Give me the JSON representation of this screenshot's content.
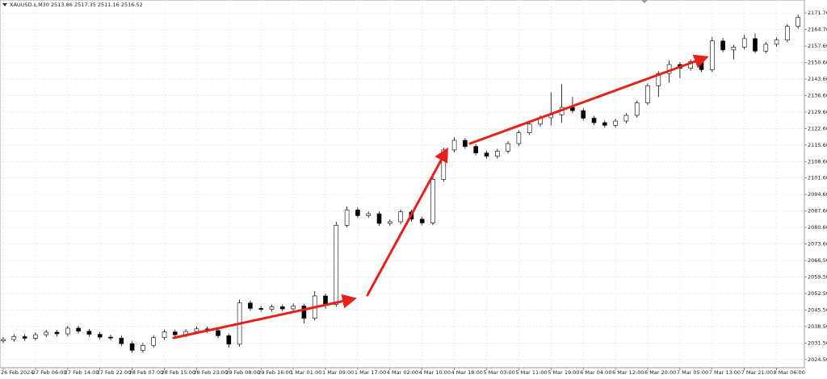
{
  "chart_data": {
    "type": "candlestick",
    "title": "XAUUSD.s,M30  2513.86 2517.35 2511.16 2516.52",
    "categories": [
      "26 Feb 2024",
      null,
      null,
      "27 Feb 06:00",
      null,
      null,
      "27 Feb 14:00",
      null,
      null,
      "27 Feb 22:00",
      null,
      null,
      "28 Feb 07:00",
      null,
      null,
      "28 Feb 15:00",
      null,
      null,
      "28 Feb 23:00",
      null,
      null,
      "29 Feb 08:00",
      null,
      null,
      "29 Feb 16:00",
      null,
      null,
      "1 Mar 01:00",
      null,
      null,
      "1 Mar 09:00",
      null,
      null,
      "1 Mar 17:00",
      null,
      null,
      "4 Mar 02:00",
      null,
      null,
      "4 Mar 10:00",
      null,
      null,
      "4 Mar 18:00",
      null,
      null,
      "5 Mar 03:00",
      null,
      null,
      "5 Mar 11:00",
      null,
      null,
      "5 Mar 19:00",
      null,
      null,
      "6 Mar 04:00",
      null,
      null,
      "6 Mar 12:00",
      null,
      null,
      "6 Mar 20:00",
      null,
      null,
      "7 Mar 05:00",
      null,
      null,
      "7 Mar 13:00",
      null,
      null,
      "7 Mar 21:00",
      null,
      null,
      "8 Mar 06:00",
      null,
      null
    ],
    "open": [
      2032.4,
      2033.0,
      2034.2,
      2033.5,
      2035.0,
      2036.1,
      2035.4,
      2037.8,
      2036.5,
      2035.2,
      2034.0,
      2033.6,
      2031.2,
      2028.4,
      2030.5,
      2033.8,
      2036.2,
      2035.0,
      2036.4,
      2037.5,
      2036.8,
      2034.6,
      2031.0,
      2048.5,
      2046.2,
      2045.8,
      2046.9,
      2046.0,
      2047.2,
      2042.0,
      2051.5,
      2047.8,
      2081.5,
      2088.0,
      2085.6,
      2086.4,
      2082.3,
      2083.0,
      2087.2,
      2084.1,
      2082.5,
      2101.0,
      2113.5,
      2117.6,
      2115.0,
      2112.2,
      2110.8,
      2113.0,
      2116.2,
      2120.8,
      2124.5,
      2127.2,
      2128.4,
      2131.6,
      2130.2,
      2127.0,
      2125.1,
      2124.0,
      2125.8,
      2128.2,
      2133.5,
      2140.8,
      2146.0,
      2149.8,
      2148.2,
      2151.0,
      2147.6,
      2159.8,
      2156.0,
      2157.2,
      2160.8,
      2155.5,
      2158.4,
      2160.2,
      2166.0
    ],
    "high": [
      2034.0,
      2035.2,
      2035.2,
      2036.0,
      2037.1,
      2037.1,
      2038.8,
      2038.8,
      2037.5,
      2036.2,
      2035.0,
      2034.6,
      2032.2,
      2031.5,
      2034.8,
      2037.2,
      2037.2,
      2037.4,
      2038.5,
      2038.5,
      2037.8,
      2035.6,
      2050.0,
      2049.5,
      2047.2,
      2047.9,
      2047.9,
      2048.2,
      2048.2,
      2053.5,
      2052.5,
      2083.0,
      2089.5,
      2089.0,
      2087.4,
      2087.4,
      2084.0,
      2088.2,
      2088.2,
      2085.1,
      2102.0,
      2114.5,
      2118.8,
      2118.6,
      2116.0,
      2113.2,
      2114.0,
      2117.2,
      2121.8,
      2125.5,
      2128.2,
      2138.0,
      2141.5,
      2136.0,
      2131.2,
      2128.0,
      2126.1,
      2126.8,
      2129.2,
      2134.5,
      2141.8,
      2147.0,
      2151.5,
      2150.8,
      2152.0,
      2152.0,
      2161.5,
      2161.0,
      2158.2,
      2162.5,
      2163.0,
      2159.4,
      2161.2,
      2167.0,
      2171.0
    ],
    "low": [
      2031.4,
      2032.0,
      2032.5,
      2032.5,
      2034.0,
      2034.4,
      2034.4,
      2035.5,
      2034.2,
      2033.0,
      2032.6,
      2030.2,
      2027.4,
      2027.4,
      2029.5,
      2032.8,
      2034.0,
      2034.0,
      2035.4,
      2035.8,
      2033.6,
      2029.5,
      2030.0,
      2045.2,
      2044.8,
      2044.8,
      2045.0,
      2045.0,
      2039.8,
      2041.0,
      2046.0,
      2046.8,
      2080.5,
      2084.6,
      2084.6,
      2081.3,
      2081.3,
      2082.0,
      2083.1,
      2081.5,
      2081.5,
      2100.0,
      2112.5,
      2114.0,
      2111.2,
      2109.8,
      2109.8,
      2112.0,
      2115.2,
      2119.8,
      2123.5,
      2124.0,
      2125.0,
      2129.2,
      2126.0,
      2124.1,
      2123.0,
      2123.0,
      2124.8,
      2127.2,
      2132.5,
      2136.0,
      2142.0,
      2144.0,
      2147.2,
      2146.6,
      2146.6,
      2155.0,
      2152.0,
      2156.2,
      2154.5,
      2154.5,
      2157.4,
      2159.2,
      2165.0
    ],
    "close": [
      2033.0,
      2034.2,
      2033.5,
      2035.0,
      2036.1,
      2035.4,
      2037.8,
      2036.5,
      2035.2,
      2034.0,
      2033.6,
      2031.2,
      2028.4,
      2030.5,
      2033.8,
      2036.2,
      2035.0,
      2036.4,
      2037.5,
      2036.8,
      2034.6,
      2031.0,
      2048.5,
      2046.2,
      2045.8,
      2046.9,
      2046.0,
      2047.2,
      2042.0,
      2051.5,
      2047.8,
      2081.5,
      2088.0,
      2085.6,
      2086.4,
      2082.3,
      2083.0,
      2087.2,
      2084.1,
      2082.5,
      2101.0,
      2113.5,
      2117.6,
      2115.0,
      2112.2,
      2110.8,
      2113.0,
      2116.2,
      2120.8,
      2124.5,
      2127.2,
      2128.4,
      2131.6,
      2130.2,
      2127.0,
      2125.1,
      2124.0,
      2125.8,
      2128.2,
      2133.5,
      2140.8,
      2146.0,
      2149.8,
      2148.2,
      2151.0,
      2147.6,
      2159.8,
      2156.0,
      2157.2,
      2160.8,
      2155.5,
      2158.4,
      2160.2,
      2166.0,
      2169.8
    ],
    "up_color": "#ffffff",
    "down_color": "#000000",
    "edge_color": "#000000",
    "ylim": [
      2021.0,
      2177.2
    ],
    "yticks": [
      {
        "value": 2024.5,
        "label": "2024.50"
      },
      {
        "value": 2031.5,
        "label": "2031.50"
      },
      {
        "value": 2038.5,
        "label": "2038.50"
      },
      {
        "value": 2045.5,
        "label": "2045.50"
      },
      {
        "value": 2052.5,
        "label": "2052.50"
      },
      {
        "value": 2059.5,
        "label": "2059.50"
      },
      {
        "value": 2066.5,
        "label": "2066.50"
      },
      {
        "value": 2073.6,
        "label": "2073.60"
      },
      {
        "value": 2080.6,
        "label": "2080.60"
      },
      {
        "value": 2087.6,
        "label": "2087.60"
      },
      {
        "value": 2094.6,
        "label": "2094.60"
      },
      {
        "value": 2101.6,
        "label": "2101.60"
      },
      {
        "value": 2108.6,
        "label": "2108.60"
      },
      {
        "value": 2115.6,
        "label": "2115.60"
      },
      {
        "value": 2122.6,
        "label": "2122.60"
      },
      {
        "value": 2129.6,
        "label": "2129.60"
      },
      {
        "value": 2136.6,
        "label": "2136.60"
      },
      {
        "value": 2143.6,
        "label": "2143.60"
      },
      {
        "value": 2150.6,
        "label": "2150.60"
      },
      {
        "value": 2157.6,
        "label": "2157.60"
      },
      {
        "value": 2164.7,
        "label": "2164.70"
      },
      {
        "value": 2171.7,
        "label": "2171.70"
      }
    ],
    "grid": true
  }
}
